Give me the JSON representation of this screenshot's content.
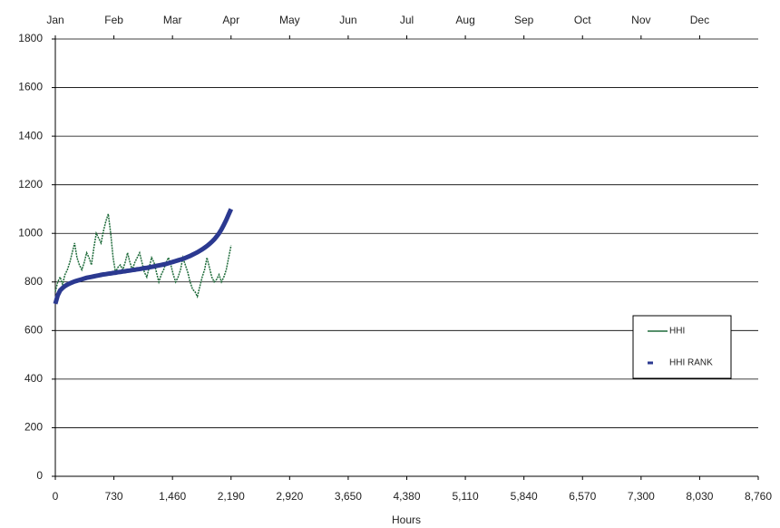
{
  "chart_data": {
    "type": "line",
    "xlabel": "Hours",
    "xlim": [
      0,
      8760
    ],
    "xticks": [
      0,
      730,
      {
        "value": 1460,
        "label": "1,460"
      },
      {
        "value": 2190,
        "label": "2,190"
      },
      {
        "value": 2920,
        "label": "2,920"
      },
      {
        "value": 3650,
        "label": "3,650"
      },
      {
        "value": 4380,
        "label": "4,380"
      },
      {
        "value": 5110,
        "label": "5,110"
      },
      {
        "value": 5840,
        "label": "5,840"
      },
      {
        "value": 6570,
        "label": "6,570"
      },
      {
        "value": 7300,
        "label": "7,300"
      },
      {
        "value": 8030,
        "label": "8,030"
      },
      {
        "value": 8760,
        "label": "8,760"
      }
    ],
    "x2ticks": [
      {
        "value": 0,
        "label": "Jan"
      },
      {
        "value": 730,
        "label": "Feb"
      },
      {
        "value": 1460,
        "label": "Mar"
      },
      {
        "value": 2190,
        "label": "Apr"
      },
      {
        "value": 2920,
        "label": "May"
      },
      {
        "value": 3650,
        "label": "Jun"
      },
      {
        "value": 4380,
        "label": "Jul"
      },
      {
        "value": 5110,
        "label": "Aug"
      },
      {
        "value": 5840,
        "label": "Sep"
      },
      {
        "value": 6570,
        "label": "Oct"
      },
      {
        "value": 7300,
        "label": "Nov"
      },
      {
        "value": 8030,
        "label": "Dec"
      }
    ],
    "ylim": [
      0,
      1800
    ],
    "yticks": [
      0,
      200,
      400,
      600,
      800,
      1000,
      1200,
      1400,
      1600,
      1800
    ],
    "grid": true,
    "legend": "right",
    "x": [
      0,
      30,
      60,
      90,
      120,
      150,
      180,
      210,
      240,
      270,
      300,
      330,
      360,
      390,
      420,
      450,
      480,
      510,
      540,
      570,
      600,
      630,
      660,
      690,
      720,
      750,
      780,
      810,
      840,
      870,
      900,
      930,
      960,
      990,
      1020,
      1050,
      1080,
      1110,
      1140,
      1170,
      1200,
      1230,
      1260,
      1290,
      1320,
      1350,
      1380,
      1410,
      1440,
      1470,
      1500,
      1530,
      1560,
      1590,
      1620,
      1650,
      1680,
      1710,
      1740,
      1770,
      1800,
      1830,
      1860,
      1890,
      1920,
      1950,
      1980,
      2010,
      2040,
      2070,
      2100,
      2130,
      2160,
      2190
    ],
    "series": [
      {
        "name": "HHI",
        "color": "#1e6b3a",
        "values": [
          760,
          800,
          820,
          790,
          830,
          850,
          880,
          920,
          960,
          900,
          870,
          850,
          880,
          920,
          900,
          870,
          940,
          1000,
          980,
          960,
          1010,
          1050,
          1080,
          1000,
          900,
          840,
          860,
          870,
          850,
          880,
          920,
          880,
          850,
          880,
          900,
          920,
          880,
          840,
          820,
          860,
          900,
          880,
          840,
          800,
          830,
          850,
          880,
          900,
          870,
          830,
          800,
          820,
          850,
          900,
          870,
          840,
          800,
          770,
          760,
          740,
          780,
          820,
          850,
          900,
          860,
          820,
          800,
          810,
          830,
          800,
          820,
          850,
          900,
          950
        ]
      },
      {
        "name": "HHI RANK",
        "color": "#2b3990",
        "values": [
          710,
          745,
          765,
          775,
          783,
          789,
          794,
          798,
          802,
          805,
          808,
          811,
          814,
          817,
          819,
          821,
          823,
          825,
          827,
          829,
          831,
          832,
          834,
          835,
          837,
          838,
          840,
          841,
          843,
          844,
          846,
          847,
          849,
          850,
          852,
          853,
          855,
          857,
          858,
          860,
          862,
          864,
          866,
          868,
          870,
          872,
          874,
          877,
          880,
          883,
          886,
          889,
          892,
          895,
          899,
          903,
          907,
          912,
          917,
          922,
          928,
          934,
          941,
          948,
          956,
          965,
          975,
          987,
          1000,
          1016,
          1035,
          1055,
          1078,
          1100
        ]
      }
    ]
  }
}
